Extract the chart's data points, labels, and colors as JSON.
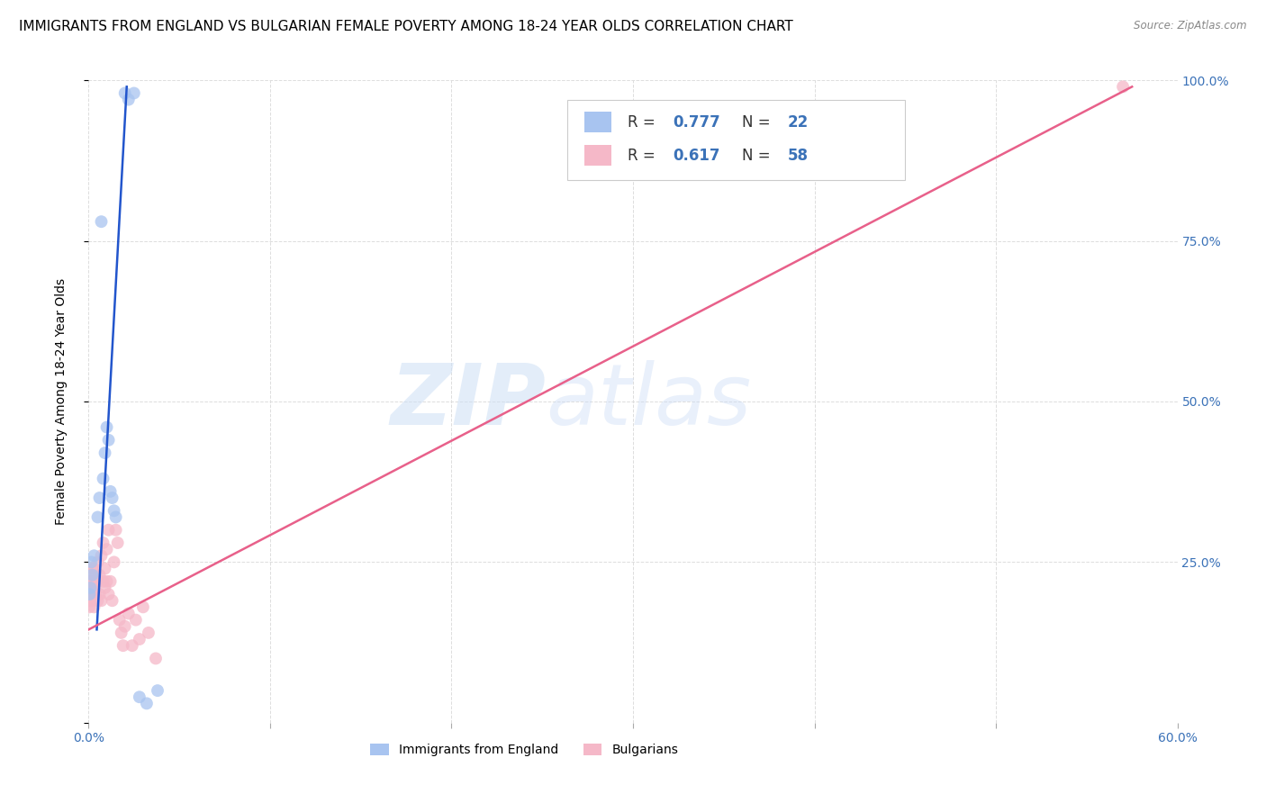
{
  "title": "IMMIGRANTS FROM ENGLAND VS BULGARIAN FEMALE POVERTY AMONG 18-24 YEAR OLDS CORRELATION CHART",
  "source": "Source: ZipAtlas.com",
  "ylabel": "Female Poverty Among 18-24 Year Olds",
  "watermark_zip": "ZIP",
  "watermark_atlas": "atlas",
  "xlim": [
    0.0,
    0.6
  ],
  "ylim": [
    0.0,
    1.0
  ],
  "xticks": [
    0.0,
    0.1,
    0.2,
    0.3,
    0.4,
    0.5,
    0.6
  ],
  "xticklabels": [
    "0.0%",
    "",
    "",
    "",
    "",
    "",
    "60.0%"
  ],
  "yticks": [
    0.0,
    0.25,
    0.5,
    0.75,
    1.0
  ],
  "yticklabels_right": [
    "",
    "25.0%",
    "50.0%",
    "75.0%",
    "100.0%"
  ],
  "legend_R1": "0.777",
  "legend_N1": "22",
  "legend_R2": "0.617",
  "legend_N2": "58",
  "blue_color": "#a8c4f0",
  "pink_color": "#f5b8c8",
  "blue_line_color": "#2255cc",
  "pink_line_color": "#e8608a",
  "blue_scatter_x": [
    0.0005,
    0.001,
    0.0015,
    0.002,
    0.003,
    0.005,
    0.006,
    0.007,
    0.008,
    0.009,
    0.01,
    0.011,
    0.012,
    0.013,
    0.014,
    0.015,
    0.02,
    0.022,
    0.025,
    0.028,
    0.032,
    0.038
  ],
  "blue_scatter_y": [
    0.2,
    0.21,
    0.25,
    0.23,
    0.26,
    0.32,
    0.35,
    0.78,
    0.38,
    0.42,
    0.46,
    0.44,
    0.36,
    0.35,
    0.33,
    0.32,
    0.98,
    0.97,
    0.98,
    0.04,
    0.03,
    0.05
  ],
  "pink_scatter_x": [
    0.0002,
    0.0003,
    0.0004,
    0.0005,
    0.0006,
    0.0007,
    0.0008,
    0.0009,
    0.001,
    0.0012,
    0.0013,
    0.0014,
    0.0015,
    0.0016,
    0.0017,
    0.0018,
    0.002,
    0.002,
    0.002,
    0.003,
    0.003,
    0.003,
    0.003,
    0.004,
    0.004,
    0.004,
    0.005,
    0.005,
    0.005,
    0.006,
    0.006,
    0.007,
    0.007,
    0.008,
    0.008,
    0.009,
    0.009,
    0.01,
    0.01,
    0.011,
    0.011,
    0.012,
    0.013,
    0.014,
    0.015,
    0.016,
    0.017,
    0.018,
    0.019,
    0.02,
    0.022,
    0.024,
    0.026,
    0.028,
    0.03,
    0.033,
    0.037,
    0.57
  ],
  "pink_scatter_y": [
    0.2,
    0.19,
    0.18,
    0.22,
    0.21,
    0.2,
    0.19,
    0.22,
    0.22,
    0.2,
    0.21,
    0.22,
    0.2,
    0.19,
    0.23,
    0.21,
    0.22,
    0.24,
    0.2,
    0.22,
    0.2,
    0.18,
    0.24,
    0.22,
    0.2,
    0.23,
    0.19,
    0.22,
    0.25,
    0.2,
    0.23,
    0.19,
    0.26,
    0.22,
    0.28,
    0.21,
    0.24,
    0.22,
    0.27,
    0.2,
    0.3,
    0.22,
    0.19,
    0.25,
    0.3,
    0.28,
    0.16,
    0.14,
    0.12,
    0.15,
    0.17,
    0.12,
    0.16,
    0.13,
    0.18,
    0.14,
    0.1,
    0.99
  ],
  "blue_line_x": [
    0.0045,
    0.021
  ],
  "blue_line_y": [
    0.145,
    0.99
  ],
  "pink_line_x": [
    0.0,
    0.575
  ],
  "pink_line_y": [
    0.145,
    0.99
  ],
  "background_color": "#ffffff",
  "grid_color": "#dddddd",
  "title_fontsize": 11,
  "axis_label_fontsize": 10,
  "tick_fontsize": 10,
  "tick_color": "#3b72b8",
  "label_color": "#3b72b8",
  "legend_text_color": "#3b72b8",
  "legend_label_color": "#333333",
  "bottom_legend_label1": "Immigrants from England",
  "bottom_legend_label2": "Bulgarians"
}
